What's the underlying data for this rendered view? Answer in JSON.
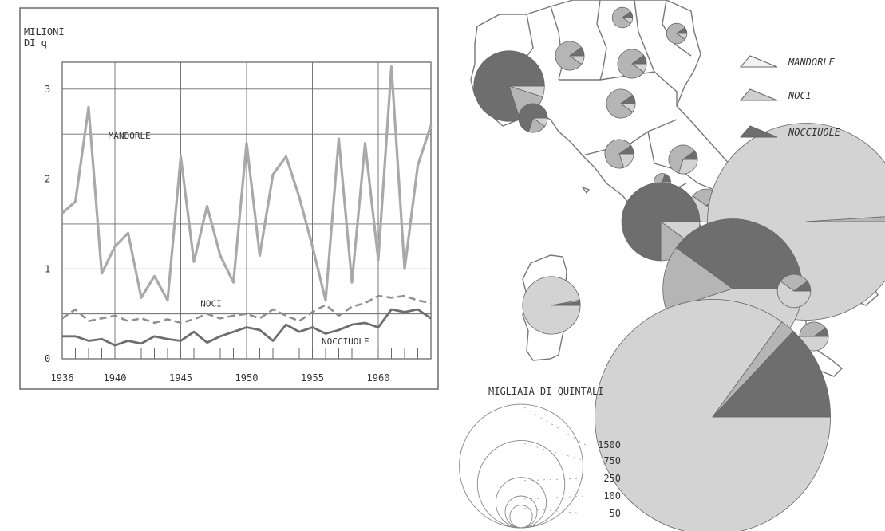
{
  "colors": {
    "mandorle": "#a9a9a9",
    "noci": "#8f8f8f",
    "nocciuole": "#6e6e6e",
    "grid": "#6a6a6a",
    "pie_light": "#d3d3d3",
    "pie_mid": "#b5b5b5",
    "pie_dark": "#6e6e6e",
    "map_line": "#777777"
  },
  "chart_data": [
    {
      "type": "line",
      "ylabel": "MILIONI DI q",
      "xlim": [
        1936,
        1964
      ],
      "ylim": [
        0,
        3.3
      ],
      "yticks": [
        0,
        1,
        2,
        3
      ],
      "xticks": [
        1936,
        1940,
        1945,
        1950,
        1955,
        1960
      ],
      "grid": true,
      "series": [
        {
          "name": "MANDORLE",
          "x": [
            1936,
            1937,
            1938,
            1939,
            1940,
            1941,
            1942,
            1943,
            1944,
            1945,
            1946,
            1947,
            1948,
            1949,
            1950,
            1951,
            1952,
            1953,
            1954,
            1955,
            1956,
            1957,
            1958,
            1959,
            1960,
            1961,
            1962,
            1963,
            1964
          ],
          "values": [
            1.62,
            1.75,
            2.8,
            0.95,
            1.25,
            1.4,
            0.68,
            0.92,
            0.65,
            2.25,
            1.08,
            1.7,
            1.15,
            0.85,
            2.4,
            1.15,
            2.05,
            2.25,
            1.8,
            1.25,
            0.65,
            2.45,
            0.85,
            2.4,
            1.1,
            3.25,
            1.0,
            2.15,
            2.6
          ]
        },
        {
          "name": "NOCI",
          "x": [
            1936,
            1937,
            1938,
            1939,
            1940,
            1941,
            1942,
            1943,
            1944,
            1945,
            1946,
            1947,
            1948,
            1949,
            1950,
            1951,
            1952,
            1953,
            1954,
            1955,
            1956,
            1957,
            1958,
            1959,
            1960,
            1961,
            1962,
            1963,
            1964
          ],
          "values": [
            0.45,
            0.55,
            0.42,
            0.45,
            0.48,
            0.42,
            0.45,
            0.4,
            0.44,
            0.4,
            0.44,
            0.5,
            0.45,
            0.48,
            0.5,
            0.45,
            0.55,
            0.48,
            0.42,
            0.52,
            0.6,
            0.48,
            0.58,
            0.62,
            0.7,
            0.68,
            0.7,
            0.65,
            0.62
          ]
        },
        {
          "name": "NOCCIUOLE",
          "x": [
            1936,
            1937,
            1938,
            1939,
            1940,
            1941,
            1942,
            1943,
            1944,
            1945,
            1946,
            1947,
            1948,
            1949,
            1950,
            1951,
            1952,
            1953,
            1954,
            1955,
            1956,
            1957,
            1958,
            1959,
            1960,
            1961,
            1962,
            1963,
            1964
          ],
          "values": [
            0.25,
            0.25,
            0.2,
            0.22,
            0.15,
            0.2,
            0.17,
            0.25,
            0.22,
            0.2,
            0.3,
            0.18,
            0.25,
            0.3,
            0.35,
            0.32,
            0.2,
            0.38,
            0.3,
            0.35,
            0.28,
            0.32,
            0.38,
            0.4,
            0.35,
            0.55,
            0.52,
            0.55,
            0.45
          ]
        }
      ]
    },
    {
      "type": "map-pie",
      "title": "MIGLIAIA DI QUINTALI",
      "legend": [
        {
          "label": "MANDORLE",
          "shade": "light"
        },
        {
          "label": "NOCI",
          "shade": "dotted"
        },
        {
          "label": "NOCCIUOLE",
          "shade": "dark"
        }
      ],
      "size_scale": [
        1500,
        750,
        250,
        100,
        50
      ],
      "pies": [
        {
          "region": "Piemonte",
          "total": 180,
          "mandorle": 0.05,
          "noci": 0.15,
          "nocciuole": 0.8
        },
        {
          "region": "Liguria",
          "total": 30,
          "mandorle": 0.1,
          "noci": 0.2,
          "nocciuole": 0.7
        },
        {
          "region": "Lombardia",
          "total": 30,
          "mandorle": 0.1,
          "noci": 0.8,
          "nocciuole": 0.1
        },
        {
          "region": "Trentino",
          "total": 15,
          "mandorle": 0.1,
          "noci": 0.8,
          "nocciuole": 0.1
        },
        {
          "region": "Veneto",
          "total": 30,
          "mandorle": 0.1,
          "noci": 0.8,
          "nocciuole": 0.1
        },
        {
          "region": "Friuli",
          "total": 15,
          "mandorle": 0.1,
          "noci": 0.8,
          "nocciuole": 0.1
        },
        {
          "region": "Emilia-Romagna",
          "total": 30,
          "mandorle": 0.1,
          "noci": 0.8,
          "nocciuole": 0.1
        },
        {
          "region": "Toscana",
          "total": 30,
          "mandorle": 0.2,
          "noci": 0.7,
          "nocciuole": 0.1
        },
        {
          "region": "Marche",
          "total": 30,
          "mandorle": 0.3,
          "noci": 0.6,
          "nocciuole": 0.1
        },
        {
          "region": "Umbria",
          "total": 10,
          "mandorle": 0.2,
          "noci": 0.6,
          "nocciuole": 0.2
        },
        {
          "region": "Abruzzi",
          "total": 40,
          "mandorle": 0.6,
          "noci": 0.3,
          "nocciuole": 0.1
        },
        {
          "region": "Lazio",
          "total": 220,
          "mandorle": 0.1,
          "noci": 0.15,
          "nocciuole": 0.75
        },
        {
          "region": "Molise",
          "total": 40,
          "mandorle": 0.5,
          "noci": 0.3,
          "nocciuole": 0.2
        },
        {
          "region": "Puglia",
          "total": 1400,
          "mandorle": 0.99,
          "noci": 0.01,
          "nocciuole": 0.0
        },
        {
          "region": "Campania",
          "total": 700,
          "mandorle": 0.45,
          "noci": 0.15,
          "nocciuole": 0.4
        },
        {
          "region": "Basilicata",
          "total": 40,
          "mandorle": 0.6,
          "noci": 0.3,
          "nocciuole": 0.1
        },
        {
          "region": "Calabria",
          "total": 30,
          "mandorle": 0.5,
          "noci": 0.4,
          "nocciuole": 0.1
        },
        {
          "region": "Sicilia",
          "total": 2000,
          "mandorle": 0.85,
          "noci": 0.02,
          "nocciuole": 0.13
        },
        {
          "region": "Sardegna",
          "total": 120,
          "mandorle": 0.97,
          "noci": 0.01,
          "nocciuole": 0.02
        }
      ]
    }
  ]
}
